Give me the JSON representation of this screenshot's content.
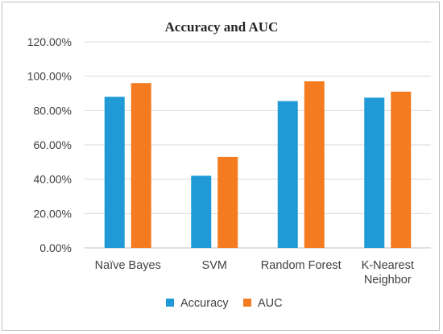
{
  "chart_data": {
    "type": "bar",
    "title": "Accuracy and AUC",
    "xlabel": "",
    "ylabel": "",
    "categories": [
      [
        "Naïve Bayes"
      ],
      [
        "SVM"
      ],
      [
        "Random Forest"
      ],
      [
        "K-Nearest",
        "Neighbor"
      ]
    ],
    "series": [
      {
        "name": "Accuracy",
        "color": "#1f9ad6",
        "values": [
          88.0,
          42.0,
          85.5,
          87.5
        ]
      },
      {
        "name": "AUC",
        "color": "#f47b20",
        "values": [
          96.0,
          53.0,
          97.0,
          91.0
        ]
      }
    ],
    "ylim": [
      0,
      120
    ],
    "yticks": [
      "0.00%",
      "20.00%",
      "40.00%",
      "60.00%",
      "80.00%",
      "100.00%",
      "120.00%"
    ],
    "grid": true,
    "legend": "bottom"
  }
}
